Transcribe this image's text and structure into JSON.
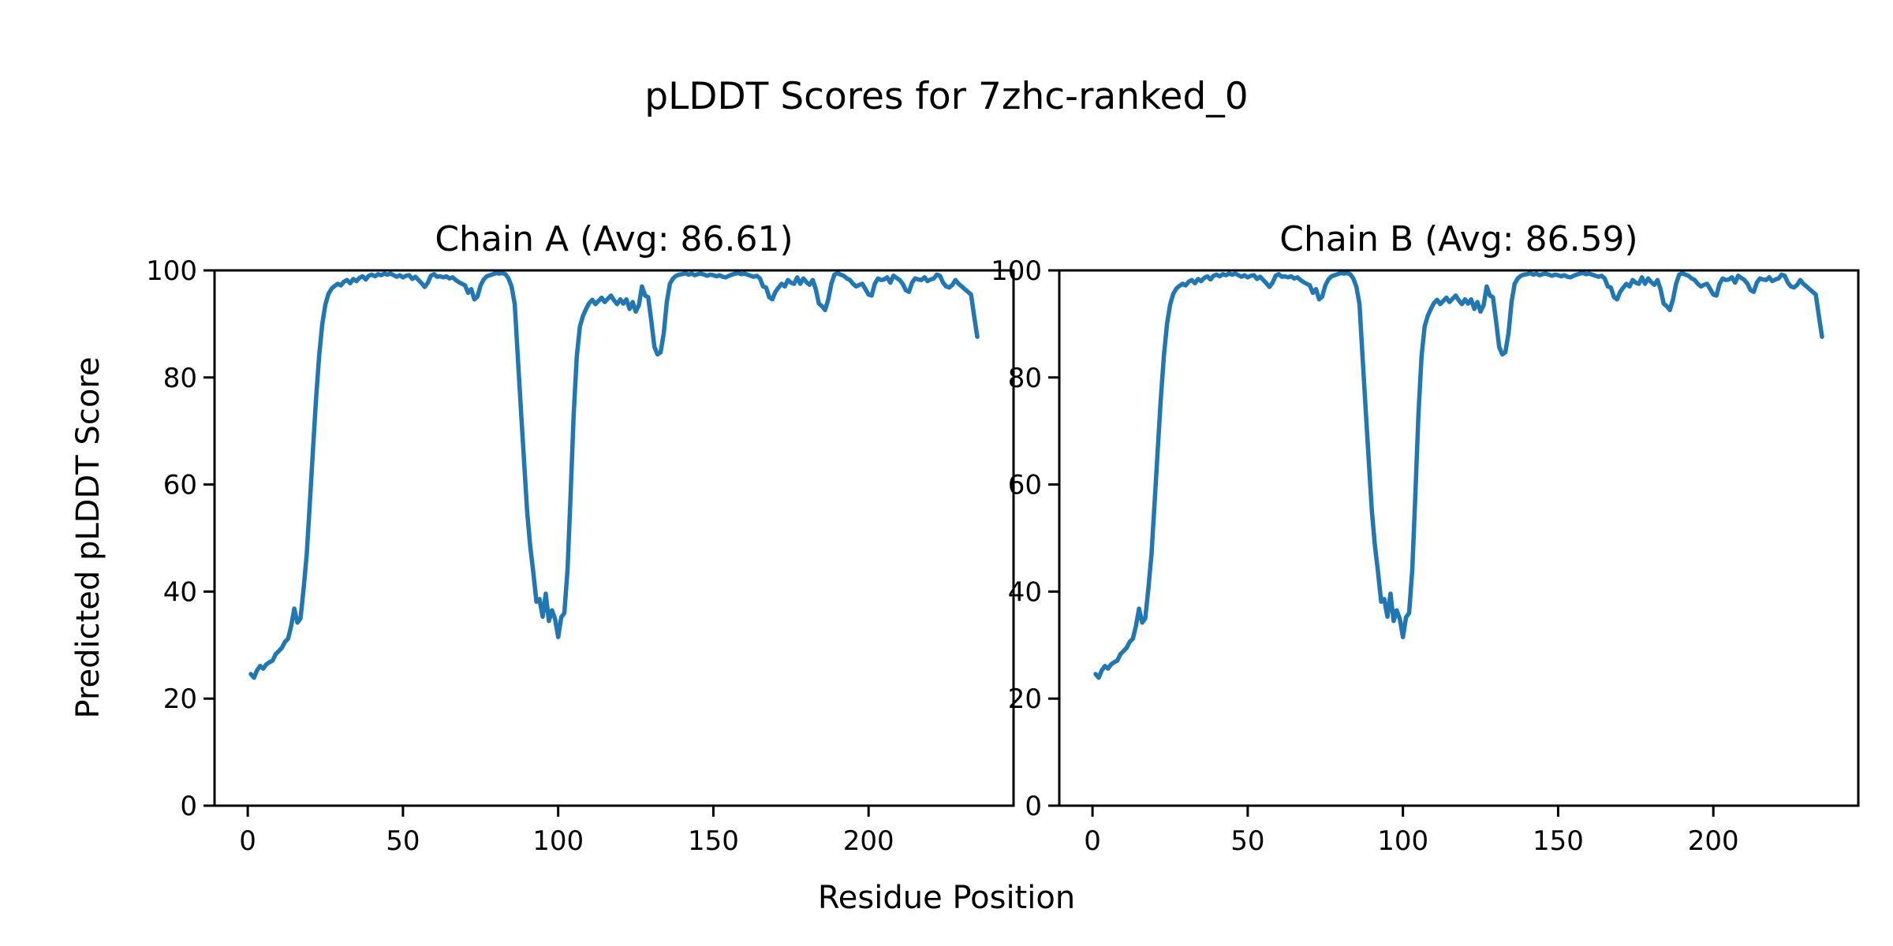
{
  "figure": {
    "title": "pLDDT Scores for 7zhc-ranked_0",
    "xlabel": "Residue Position",
    "ylabel": "Predicted pLDDT Score",
    "background": "#ffffff",
    "text_color": "#000000",
    "axis_color": "#000000"
  },
  "chart_data": [
    {
      "type": "line",
      "title": "Chain A (Avg: 86.61)",
      "series_name": "Chain A pLDDT",
      "average": 86.61,
      "line_color": "#1f77b4",
      "grid": false,
      "legend": "none",
      "x_start": 1,
      "x_end": 235,
      "xlim": [
        -10.7,
        246.7
      ],
      "ylim": [
        0,
        100
      ],
      "xticks": [
        0,
        50,
        100,
        150,
        200
      ],
      "yticks": [
        0,
        20,
        40,
        60,
        80,
        100
      ],
      "values": [
        24.6,
        23.9,
        25.3,
        26.1,
        25.6,
        26.4,
        26.8,
        27.1,
        28.3,
        28.9,
        29.5,
        30.6,
        31.2,
        33.6,
        36.8,
        34.2,
        35.0,
        40.5,
        47.0,
        56.5,
        66.5,
        76.0,
        84.0,
        90.0,
        93.6,
        95.6,
        96.6,
        97.1,
        97.5,
        97.2,
        97.9,
        98.2,
        97.6,
        98.4,
        98.0,
        98.6,
        98.9,
        98.3,
        99.0,
        99.2,
        98.9,
        99.3,
        99.1,
        99.4,
        99.2,
        99.4,
        99.1,
        98.8,
        99.1,
        98.7,
        99.0,
        99.1,
        98.4,
        98.8,
        98.2,
        97.6,
        96.9,
        97.7,
        99.0,
        99.3,
        98.8,
        98.9,
        98.7,
        98.9,
        98.5,
        98.7,
        98.2,
        97.8,
        97.5,
        97.2,
        95.8,
        96.5,
        94.6,
        95.1,
        97.2,
        98.3,
        98.9,
        99.1,
        99.3,
        99.5,
        99.4,
        99.5,
        99.3,
        98.5,
        97.0,
        93.7,
        83.8,
        74.1,
        64.4,
        55.0,
        48.5,
        43.5,
        38.1,
        38.6,
        35.3,
        39.6,
        34.5,
        36.5,
        34.9,
        31.5,
        35.2,
        36.0,
        44.0,
        58.0,
        73.0,
        84.0,
        89.5,
        91.5,
        92.8,
        93.9,
        94.5,
        93.7,
        94.3,
        94.9,
        94.1,
        94.7,
        95.3,
        94.4,
        93.7,
        94.6,
        93.8,
        94.6,
        92.8,
        94.1,
        92.3,
        93.5,
        97.0,
        95.3,
        95.0,
        90.6,
        85.7,
        84.3,
        84.7,
        88.2,
        94.1,
        97.5,
        98.5,
        99.0,
        99.2,
        99.3,
        99.5,
        99.2,
        99.4,
        99.1,
        99.3,
        99.4,
        99.2,
        99.0,
        99.2,
        99.1,
        98.9,
        99.1,
        98.8,
        98.7,
        99.0,
        99.2,
        99.4,
        99.5,
        99.3,
        99.4,
        99.2,
        99.0,
        98.8,
        99.0,
        98.5,
        97.0,
        96.8,
        95.0,
        94.6,
        96.0,
        96.8,
        97.5,
        97.0,
        98.2,
        97.7,
        97.5,
        98.7,
        97.5,
        98.5,
        97.8,
        97.3,
        98.2,
        96.5,
        93.8,
        93.3,
        92.6,
        94.6,
        97.5,
        99.2,
        99.5,
        99.2,
        99.0,
        98.5,
        98.2,
        97.5,
        97.0,
        97.3,
        97.5,
        96.5,
        95.5,
        95.3,
        97.5,
        98.5,
        98.2,
        98.3,
        98.7,
        97.7,
        99.0,
        98.6,
        98.2,
        97.5,
        96.3,
        96.0,
        97.7,
        98.5,
        98.3,
        98.2,
        98.7,
        98.0,
        98.3,
        98.5,
        99.2,
        99.0,
        97.7,
        97.0,
        96.8,
        97.3,
        98.2,
        97.5,
        97.0,
        96.5,
        96.0,
        95.5,
        91.5,
        87.6
      ]
    },
    {
      "type": "line",
      "title": "Chain B (Avg: 86.59)",
      "series_name": "Chain B pLDDT",
      "average": 86.59,
      "line_color": "#1f77b4",
      "grid": false,
      "legend": "none",
      "x_start": 1,
      "x_end": 235,
      "xlim": [
        -10.7,
        246.7
      ],
      "ylim": [
        0,
        100
      ],
      "xticks": [
        0,
        50,
        100,
        150,
        200
      ],
      "yticks": [
        0,
        20,
        40,
        60,
        80,
        100
      ],
      "values": [
        24.6,
        23.9,
        25.3,
        26.1,
        25.6,
        26.4,
        26.8,
        27.1,
        28.3,
        28.9,
        29.5,
        30.6,
        31.2,
        33.6,
        36.8,
        34.2,
        35.0,
        40.5,
        47.0,
        56.5,
        66.5,
        76.0,
        84.0,
        90.0,
        93.6,
        95.6,
        96.6,
        97.1,
        97.5,
        97.2,
        97.9,
        98.2,
        97.6,
        98.4,
        98.0,
        98.6,
        98.9,
        98.3,
        99.0,
        99.2,
        98.9,
        99.3,
        99.1,
        99.4,
        99.2,
        99.4,
        99.1,
        98.8,
        99.1,
        98.7,
        99.0,
        99.1,
        98.4,
        98.8,
        98.2,
        97.6,
        96.9,
        97.7,
        99.0,
        99.3,
        98.8,
        98.9,
        98.7,
        98.9,
        98.5,
        98.7,
        98.2,
        97.8,
        97.5,
        97.2,
        95.8,
        96.5,
        94.6,
        95.1,
        97.2,
        98.3,
        98.9,
        99.1,
        99.3,
        99.5,
        99.4,
        99.5,
        99.3,
        98.5,
        97.0,
        93.7,
        83.8,
        74.1,
        64.4,
        55.0,
        48.5,
        43.5,
        38.1,
        38.6,
        35.3,
        39.6,
        34.5,
        36.5,
        34.9,
        31.5,
        35.2,
        36.0,
        44.0,
        58.0,
        73.0,
        84.0,
        89.5,
        91.5,
        92.8,
        93.9,
        94.5,
        93.7,
        94.3,
        94.9,
        94.1,
        94.7,
        95.3,
        94.4,
        93.7,
        94.6,
        93.8,
        94.6,
        92.8,
        94.1,
        92.3,
        93.5,
        97.0,
        95.3,
        95.0,
        90.6,
        85.7,
        84.3,
        84.7,
        88.2,
        94.1,
        97.5,
        98.5,
        99.0,
        99.2,
        99.3,
        99.5,
        99.2,
        99.4,
        99.1,
        99.3,
        99.4,
        99.2,
        99.0,
        99.2,
        99.1,
        98.9,
        99.1,
        98.8,
        98.7,
        99.0,
        99.2,
        99.4,
        99.5,
        99.3,
        99.4,
        99.2,
        99.0,
        98.8,
        99.0,
        98.5,
        97.0,
        96.8,
        95.0,
        94.6,
        96.0,
        96.8,
        97.5,
        97.0,
        98.2,
        97.7,
        97.5,
        98.7,
        97.5,
        98.5,
        97.8,
        97.3,
        98.2,
        96.5,
        93.8,
        93.3,
        92.6,
        94.6,
        97.5,
        99.2,
        99.5,
        99.2,
        99.0,
        98.5,
        98.2,
        97.5,
        97.0,
        97.3,
        97.5,
        96.5,
        95.5,
        95.3,
        97.5,
        98.5,
        98.2,
        98.3,
        98.7,
        97.7,
        99.0,
        98.6,
        98.2,
        97.5,
        96.3,
        96.0,
        97.7,
        98.5,
        98.3,
        98.2,
        98.7,
        98.0,
        98.3,
        98.5,
        99.2,
        99.0,
        97.7,
        97.0,
        96.8,
        97.3,
        98.2,
        97.5,
        97.0,
        96.5,
        96.0,
        95.5,
        91.5,
        87.6
      ]
    }
  ]
}
